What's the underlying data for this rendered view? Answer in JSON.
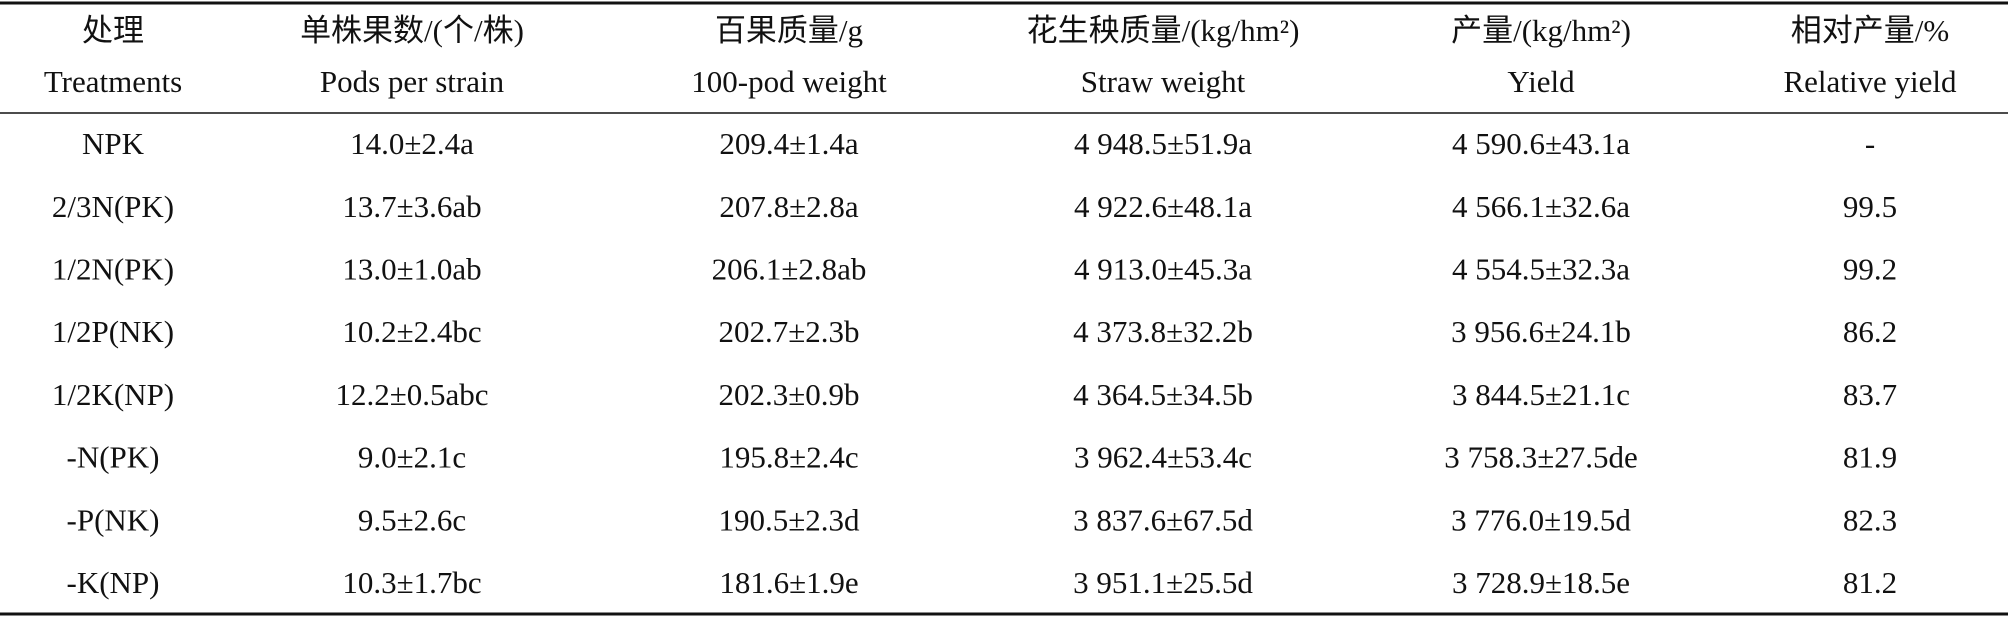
{
  "table": {
    "columns": [
      {
        "zh": "处理",
        "en": "Treatments"
      },
      {
        "zh": "单株果数/(个/株)",
        "en": "Pods per strain"
      },
      {
        "zh": "百果质量/g",
        "en": "100-pod weight"
      },
      {
        "zh": "花生秧质量/(kg/hm²)",
        "en": "Straw weight"
      },
      {
        "zh": "产量/(kg/hm²)",
        "en": "Yield"
      },
      {
        "zh": "相对产量/%",
        "en": "Relative yield"
      }
    ],
    "rows": [
      [
        "NPK",
        "14.0±2.4a",
        "209.4±1.4a",
        "4 948.5±51.9a",
        "4 590.6±43.1a",
        "-"
      ],
      [
        "2/3N(PK)",
        "13.7±3.6ab",
        "207.8±2.8a",
        "4 922.6±48.1a",
        "4 566.1±32.6a",
        "99.5"
      ],
      [
        "1/2N(PK)",
        "13.0±1.0ab",
        "206.1±2.8ab",
        "4 913.0±45.3a",
        "4 554.5±32.3a",
        "99.2"
      ],
      [
        "1/2P(NK)",
        "10.2±2.4bc",
        "202.7±2.3b",
        "4 373.8±32.2b",
        "3 956.6±24.1b",
        "86.2"
      ],
      [
        "1/2K(NP)",
        "12.2±0.5abc",
        "202.3±0.9b",
        "4 364.5±34.5b",
        "3 844.5±21.1c",
        "83.7"
      ],
      [
        "-N(PK)",
        "9.0±2.1c",
        "195.8±2.4c",
        "3 962.4±53.4c",
        "3 758.3±27.5de",
        "81.9"
      ],
      [
        "-P(NK)",
        "9.5±2.6c",
        "190.5±2.3d",
        "3 837.6±67.5d",
        "3 776.0±19.5d",
        "82.3"
      ],
      [
        "-K(NP)",
        "10.3±1.7bc",
        "181.6±1.9e",
        "3 951.1±25.5d",
        "3 728.9±18.5e",
        "81.2"
      ]
    ]
  }
}
